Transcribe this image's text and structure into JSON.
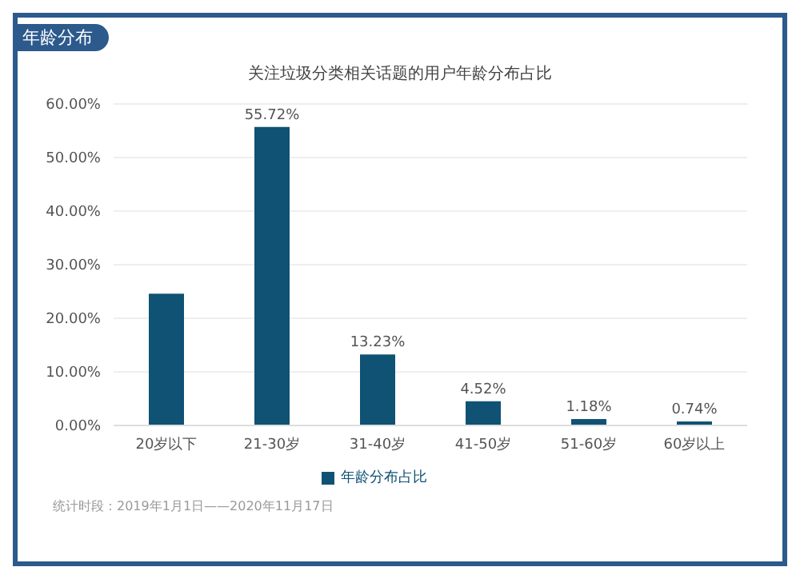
{
  "chart_data": {
    "type": "bar",
    "title": "关注垃圾分类相关话题的用户年龄分布占比",
    "categories": [
      "20岁以下",
      "21-30岁",
      "31-40岁",
      "41-50岁",
      "51-60岁",
      "60岁以上"
    ],
    "series": [
      {
        "name": "年龄分布占比",
        "color": "#0f5274",
        "values": [
          24.6,
          55.72,
          13.23,
          4.52,
          1.18,
          0.74
        ],
        "value_labels": [
          null,
          "55.72%",
          "13.23%",
          "4.52%",
          "1.18%",
          "0.74%"
        ]
      }
    ],
    "ylim": [
      0,
      60
    ],
    "yticks": [
      {
        "value": 0,
        "label": "0.00%"
      },
      {
        "value": 10,
        "label": "10.00%"
      },
      {
        "value": 20,
        "label": "20.00%"
      },
      {
        "value": 30,
        "label": "30.00%"
      },
      {
        "value": 40,
        "label": "40.00%"
      },
      {
        "value": 50,
        "label": "50.00%"
      },
      {
        "value": 60,
        "label": "60.00%"
      }
    ],
    "grid": "y",
    "legend": "bottom",
    "annotations": [
      "年龄分布",
      "统计时段：2019年1月1日——2020年11月17日"
    ]
  }
}
